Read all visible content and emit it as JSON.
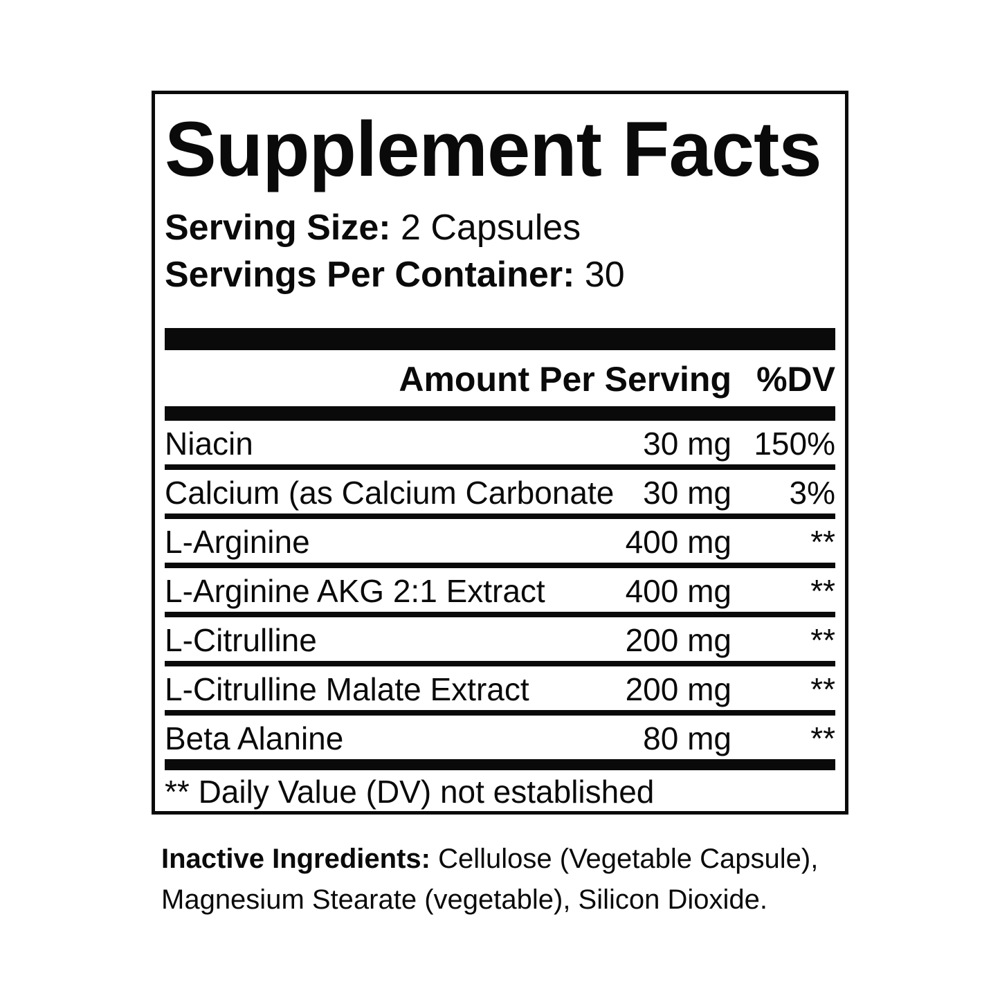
{
  "label": {
    "title": "Supplement Facts",
    "serving_size_label": "Serving Size:",
    "serving_size_value": " 2 Capsules",
    "servings_per_container_label": "Servings Per Container:",
    "servings_per_container_value": " 30",
    "header": {
      "amount": "Amount Per Serving",
      "dv": "%DV"
    },
    "rows": [
      {
        "name": "Niacin",
        "amount": "30 mg",
        "dv": "150%"
      },
      {
        "name": "Calcium (as Calcium Carbonate",
        "amount": "30 mg",
        "dv": "3%"
      },
      {
        "name": "L-Arginine",
        "amount": "400 mg",
        "dv": "**"
      },
      {
        "name": "L-Arginine AKG 2:1 Extract",
        "amount": "400 mg",
        "dv": "**"
      },
      {
        "name": "L-Citrulline",
        "amount": "200 mg",
        "dv": "**"
      },
      {
        "name": "L-Citrulline Malate Extract",
        "amount": "200 mg",
        "dv": "**"
      },
      {
        "name": "Beta Alanine",
        "amount": "80 mg",
        "dv": "**"
      }
    ],
    "footnote": "** Daily Value (DV) not established",
    "inactive_label": "Inactive Ingredients:",
    "inactive_text": " Cellulose (Vegetable Capsule), Magnesium Stearate (vegetable), Silicon Dioxide.",
    "colors": {
      "text": "#0a0a0a",
      "background": "#ffffff"
    }
  }
}
